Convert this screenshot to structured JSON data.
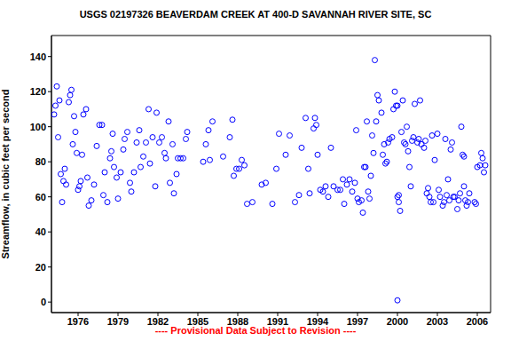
{
  "chart_data": {
    "type": "scatter",
    "title": "USGS 02197326 BEAVERDAM CREEK AT 400-D SAVANNAH RIVER SITE, SC",
    "y_label": "Streamflow, in cubic feet per second",
    "annotations": [
      "---- Provisional Data Subject to Revision ----"
    ],
    "color": "#0000ff",
    "marker": "circle_open",
    "grid": false,
    "xlim": [
      1974,
      2007
    ],
    "xticks": [
      1976,
      1979,
      1982,
      1985,
      1988,
      1991,
      1994,
      1997,
      2000,
      2003,
      2006
    ],
    "ylim": [
      -6,
      152
    ],
    "yticks": [
      0,
      20,
      40,
      60,
      80,
      100,
      120,
      140
    ],
    "x": [
      1974.2,
      1974.3,
      1974.4,
      1974.5,
      1974.6,
      1974.7,
      1974.8,
      1974.9,
      1975.0,
      1975.1,
      1975.3,
      1975.4,
      1975.5,
      1975.6,
      1975.7,
      1975.8,
      1975.9,
      1976.0,
      1976.1,
      1976.2,
      1976.3,
      1976.4,
      1976.6,
      1976.7,
      1976.8,
      1977.0,
      1977.2,
      1977.4,
      1977.6,
      1977.8,
      1977.9,
      1978.0,
      1978.2,
      1978.4,
      1978.5,
      1978.6,
      1978.7,
      1978.9,
      1979.0,
      1979.2,
      1979.4,
      1979.5,
      1979.7,
      1979.9,
      1980.0,
      1980.2,
      1980.4,
      1980.6,
      1980.7,
      1980.9,
      1981.1,
      1981.3,
      1981.4,
      1981.6,
      1981.8,
      1981.9,
      1982.1,
      1982.3,
      1982.5,
      1982.6,
      1982.8,
      1982.9,
      1983.1,
      1983.2,
      1983.4,
      1983.5,
      1983.7,
      1983.9,
      1984.1,
      1984.2,
      1985.4,
      1985.6,
      1985.8,
      1985.9,
      1986.1,
      1986.9,
      1987.4,
      1987.6,
      1987.7,
      1987.9,
      1988.1,
      1988.3,
      1988.5,
      1988.7,
      1989.1,
      1989.8,
      1990.1,
      1990.6,
      1990.9,
      1991.1,
      1991.6,
      1991.9,
      1992.3,
      1992.6,
      1992.8,
      1993.1,
      1993.3,
      1993.4,
      1993.7,
      1993.8,
      1993.9,
      1994.0,
      1994.2,
      1994.4,
      1994.6,
      1994.8,
      1995.0,
      1995.2,
      1995.5,
      1995.7,
      1995.9,
      1996.0,
      1996.2,
      1996.4,
      1996.6,
      1996.8,
      1996.9,
      1997.0,
      1997.1,
      1997.3,
      1997.4,
      1997.5,
      1997.6,
      1997.7,
      1997.8,
      1997.9,
      1998.0,
      1998.1,
      1998.2,
      1998.3,
      1998.4,
      1998.5,
      1998.6,
      1998.8,
      1998.9,
      1999.0,
      1999.1,
      1999.2,
      1999.3,
      1999.4,
      1999.6,
      1999.7,
      1999.8,
      1999.9,
      2000.0,
      2000.0,
      2000.1,
      2000.1,
      2000.2,
      2000.0,
      2000.3,
      2000.4,
      2000.5,
      2000.6,
      2000.7,
      2000.8,
      2000.9,
      2001.0,
      2001.1,
      2001.2,
      2001.3,
      2001.5,
      2001.6,
      2001.7,
      2001.8,
      2002.0,
      2002.1,
      2002.2,
      2002.3,
      2002.4,
      2002.5,
      2002.6,
      2002.7,
      2002.8,
      2003.0,
      2003.1,
      2003.2,
      2003.4,
      2003.5,
      2003.6,
      2003.7,
      2003.8,
      2003.9,
      2004.0,
      2004.1,
      2004.2,
      2004.3,
      2004.5,
      2004.6,
      2004.7,
      2004.8,
      2004.9,
      2005.0,
      2005.0,
      2005.1,
      2005.2,
      2005.3,
      2005.4,
      2005.8,
      2005.9,
      2006.0,
      2006.2,
      2006.3,
      2006.4,
      2006.5,
      2006.6
    ],
    "values": [
      107,
      112,
      123,
      94,
      115,
      73,
      57,
      69,
      76,
      67,
      114,
      118,
      121,
      90,
      106,
      97,
      85,
      64,
      66,
      69,
      84,
      107,
      110,
      71,
      55,
      58,
      67,
      89,
      101,
      101,
      61,
      74,
      57,
      82,
      86,
      96,
      77,
      71,
      59,
      74,
      87,
      93,
      97,
      68,
      63,
      74,
      91,
      98,
      77,
      83,
      91,
      110,
      79,
      94,
      66,
      108,
      91,
      94,
      85,
      82,
      103,
      68,
      90,
      62,
      73,
      82,
      82,
      82,
      93,
      97,
      80,
      90,
      98,
      81,
      103,
      83,
      94,
      104,
      72,
      76,
      76,
      81,
      78,
      56,
      57,
      67,
      68,
      56,
      76,
      96,
      84,
      95,
      57,
      61,
      88,
      105,
      76,
      62,
      99,
      105,
      101,
      84,
      64,
      63,
      66,
      60,
      88,
      66,
      64,
      64,
      70,
      56,
      67,
      70,
      63,
      68,
      98,
      59,
      57,
      58,
      51,
      77,
      77,
      103,
      63,
      59,
      72,
      95,
      85,
      138,
      103,
      118,
      115,
      108,
      84,
      90,
      79,
      80,
      91,
      93,
      94,
      110,
      120,
      112,
      112,
      60,
      61,
      57,
      52,
      1,
      97,
      115,
      91,
      90,
      100,
      86,
      77,
      66,
      92,
      94,
      113,
      91,
      93,
      115,
      90,
      88,
      92,
      62,
      65,
      60,
      57,
      95,
      57,
      81,
      96,
      64,
      60,
      55,
      57,
      93,
      61,
      70,
      58,
      87,
      91,
      60,
      60,
      53,
      58,
      62,
      100,
      84,
      83,
      66,
      58,
      55,
      57,
      62,
      57,
      56,
      77,
      78,
      85,
      82,
      74,
      78
    ]
  }
}
